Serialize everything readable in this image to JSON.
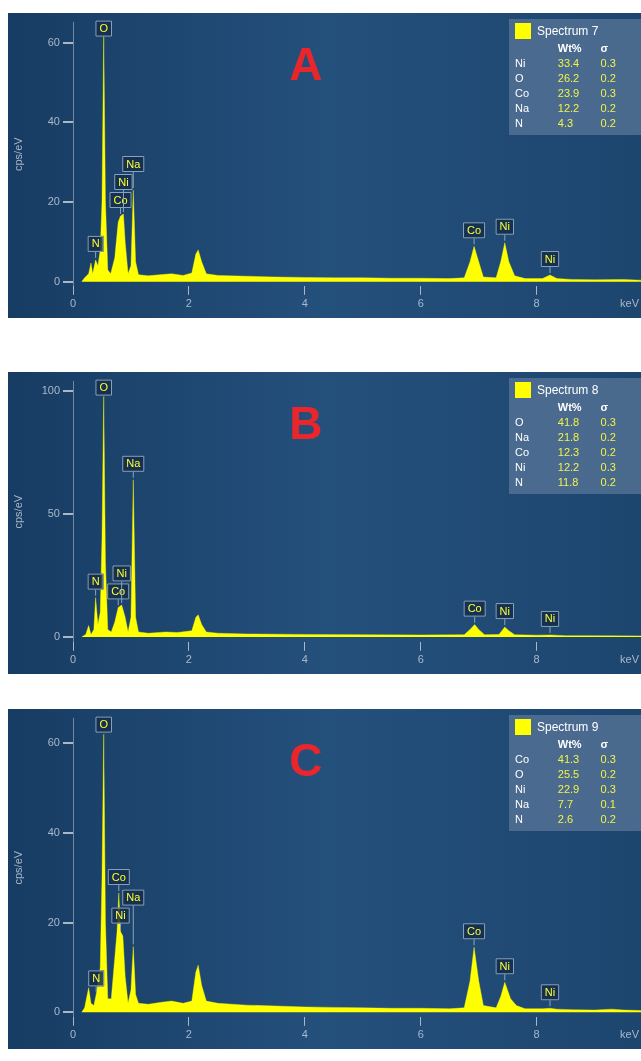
{
  "chart_data": [
    {
      "type": "area",
      "title": "A",
      "xlabel": "keV",
      "ylabel": "cps/eV",
      "xlim": [
        0,
        9.8
      ],
      "xticks": [
        0,
        2,
        4,
        6,
        8
      ],
      "ylim": [
        -1,
        65
      ],
      "yticks": [
        0,
        20,
        40,
        60
      ],
      "grid": false,
      "legend": "top right",
      "series": [
        {
          "name": "Spectrum 7",
          "color": "#ffff00",
          "x": [
            0.15,
            0.2,
            0.27,
            0.31,
            0.34,
            0.39,
            0.43,
            0.47,
            0.5,
            0.53,
            0.56,
            0.6,
            0.65,
            0.72,
            0.78,
            0.82,
            0.87,
            0.9,
            0.95,
            1.0,
            1.04,
            1.08,
            1.13,
            1.3,
            1.5,
            1.7,
            1.9,
            2.05,
            2.12,
            2.16,
            2.22,
            2.3,
            2.5,
            3,
            3.5,
            4,
            4.5,
            5,
            5.5,
            6,
            6.5,
            6.75,
            6.85,
            6.92,
            7.0,
            7.08,
            7.3,
            7.38,
            7.45,
            7.52,
            7.62,
            7.8,
            8.1,
            8.23,
            8.35,
            8.6,
            9,
            9.5,
            9.8
          ],
          "values": [
            0,
            1,
            2,
            4.7,
            2,
            5.5,
            4,
            8,
            20,
            62,
            20,
            3,
            2,
            6,
            15,
            16.5,
            17,
            10,
            2,
            4,
            23,
            5,
            1.8,
            1.5,
            1.8,
            2,
            1.6,
            2.2,
            7,
            8,
            5,
            2,
            1.6,
            1.4,
            1.2,
            1.1,
            1,
            1,
            0.9,
            0.9,
            0.8,
            1,
            5,
            8.9,
            5,
            1.2,
            1,
            5,
            9.8,
            5,
            1.5,
            0.8,
            0.8,
            1.7,
            0.8,
            0.6,
            0.5,
            0.6,
            0.4
          ]
        }
      ],
      "annotations": [
        "\tWt%\tσ",
        "Ni\t33.4\t0.3",
        "O\t26.2\t0.2",
        "Co\t23.9\t0.3",
        "Na\t12.2\t0.2",
        "N\t4.3\t0.2",
        {
          "text": "O",
          "x": 0.53,
          "y": 62
        },
        {
          "text": "N",
          "x": 0.39,
          "y": 5.5
        },
        {
          "text": "Co",
          "x": 0.82,
          "y": 16.5
        },
        {
          "text": "Ni",
          "x": 0.87,
          "y": 17
        },
        {
          "text": "Na",
          "x": 1.04,
          "y": 23
        },
        {
          "text": "Co",
          "x": 6.92,
          "y": 8.9
        },
        {
          "text": "Ni",
          "x": 7.45,
          "y": 9.8
        },
        {
          "text": "Ni",
          "x": 8.23,
          "y": 1.7
        }
      ]
    },
    {
      "type": "area",
      "title": "B",
      "xlabel": "keV",
      "ylabel": "cps/eV",
      "xlim": [
        0,
        9.8
      ],
      "xticks": [
        0,
        2,
        4,
        6,
        8
      ],
      "ylim": [
        -2,
        104
      ],
      "yticks": [
        0,
        50,
        100
      ],
      "grid": false,
      "legend": "top right",
      "series": [
        {
          "name": "Spectrum 8",
          "color": "#ffff00",
          "x": [
            0.15,
            0.22,
            0.27,
            0.31,
            0.36,
            0.39,
            0.43,
            0.47,
            0.5,
            0.53,
            0.56,
            0.6,
            0.66,
            0.72,
            0.78,
            0.84,
            0.9,
            0.95,
            1.0,
            1.04,
            1.08,
            1.13,
            1.3,
            1.6,
            1.8,
            2.05,
            2.12,
            2.16,
            2.22,
            2.3,
            2.5,
            3,
            4,
            5,
            6,
            6.75,
            6.85,
            6.93,
            7.0,
            7.1,
            7.35,
            7.45,
            7.52,
            7.62,
            8,
            8.23,
            8.5,
            9,
            9.8
          ],
          "values": [
            0,
            1,
            4.6,
            1,
            3,
            16,
            5,
            10,
            40,
            98,
            30,
            3,
            2,
            6,
            12,
            13,
            8,
            2,
            8,
            64,
            8,
            2,
            1.5,
            2,
            1.8,
            2.5,
            8,
            9,
            5,
            2,
            1.5,
            1.2,
            1,
            0.9,
            0.8,
            0.9,
            3,
            5,
            3,
            0.9,
            1,
            4,
            2.5,
            0.9,
            0.7,
            0.8,
            0.5,
            0.5,
            0.4
          ]
        }
      ],
      "annotations": [
        "\tWt%\tσ",
        "O\t41.8\t0.3",
        "Na\t21.8\t0.2",
        "Co\t12.3\t0.2",
        "Ni\t12.2\t0.3",
        "N\t11.8\t0.2",
        {
          "text": "O",
          "x": 0.53,
          "y": 98
        },
        {
          "text": "N",
          "x": 0.39,
          "y": 16
        },
        {
          "text": "Co",
          "x": 0.78,
          "y": 12
        },
        {
          "text": "Ni",
          "x": 0.84,
          "y": 13
        },
        {
          "text": "Na",
          "x": 1.04,
          "y": 64
        },
        {
          "text": "Co",
          "x": 6.93,
          "y": 5
        },
        {
          "text": "Ni",
          "x": 7.45,
          "y": 4
        },
        {
          "text": "Ni",
          "x": 8.23,
          "y": 0.8
        }
      ]
    },
    {
      "type": "area",
      "title": "C",
      "xlabel": "keV",
      "ylabel": "cps/eV",
      "xlim": [
        0,
        9.8
      ],
      "xticks": [
        0,
        2,
        4,
        6,
        8
      ],
      "ylim": [
        -1,
        65.5
      ],
      "yticks": [
        0,
        20,
        40,
        60
      ],
      "grid": false,
      "legend": "top right",
      "series": [
        {
          "name": "Spectrum 9",
          "color": "#ffff00",
          "x": [
            0.15,
            0.2,
            0.27,
            0.31,
            0.36,
            0.4,
            0.47,
            0.5,
            0.53,
            0.56,
            0.6,
            0.66,
            0.72,
            0.76,
            0.79,
            0.82,
            0.86,
            0.9,
            0.95,
            1.0,
            1.04,
            1.08,
            1.13,
            1.3,
            1.5,
            1.7,
            1.9,
            2.05,
            2.12,
            2.16,
            2.22,
            2.3,
            2.5,
            3,
            3.5,
            4,
            4.5,
            5,
            5.5,
            6,
            6.5,
            6.75,
            6.85,
            6.92,
            7.0,
            7.08,
            7.3,
            7.38,
            7.45,
            7.55,
            7.65,
            7.8,
            8.1,
            8.23,
            8.35,
            8.6,
            9,
            9.3,
            9.5,
            9.8
          ],
          "values": [
            0,
            1,
            5.5,
            2,
            1.5,
            4,
            10,
            30,
            62,
            20,
            3,
            3,
            12,
            18,
            26.6,
            18,
            17,
            8,
            2,
            5,
            14.7,
            4,
            2,
            1.8,
            2.2,
            2.5,
            2,
            2.5,
            9,
            10.5,
            6,
            2.5,
            2,
            1.6,
            1.4,
            1.2,
            1.1,
            1,
            0.9,
            0.9,
            0.8,
            1,
            7,
            14.5,
            7,
            1.5,
            1,
            3.5,
            6.7,
            3,
            1.5,
            0.8,
            0.8,
            0.9,
            0.7,
            0.6,
            0.5,
            0.7,
            0.5,
            0.4
          ]
        }
      ],
      "annotations": [
        "\tWt%\tσ",
        "Co\t41.3\t0.3",
        "O\t25.5\t0.2",
        "Ni\t22.9\t0.3",
        "Na\t7.7\t0.1",
        "N\t2.6\t0.2",
        {
          "text": "O",
          "x": 0.53,
          "y": 62
        },
        {
          "text": "N",
          "x": 0.4,
          "y": 4
        },
        {
          "text": "Ni",
          "x": 0.82,
          "y": 18
        },
        {
          "text": "Co",
          "x": 0.79,
          "y": 26.6
        },
        {
          "text": "Na",
          "x": 1.04,
          "y": 14.7
        },
        {
          "text": "Co",
          "x": 6.92,
          "y": 14.5
        },
        {
          "text": "Ni",
          "x": 7.45,
          "y": 6.7
        },
        {
          "text": "Ni",
          "x": 8.23,
          "y": 0.9
        }
      ]
    }
  ]
}
